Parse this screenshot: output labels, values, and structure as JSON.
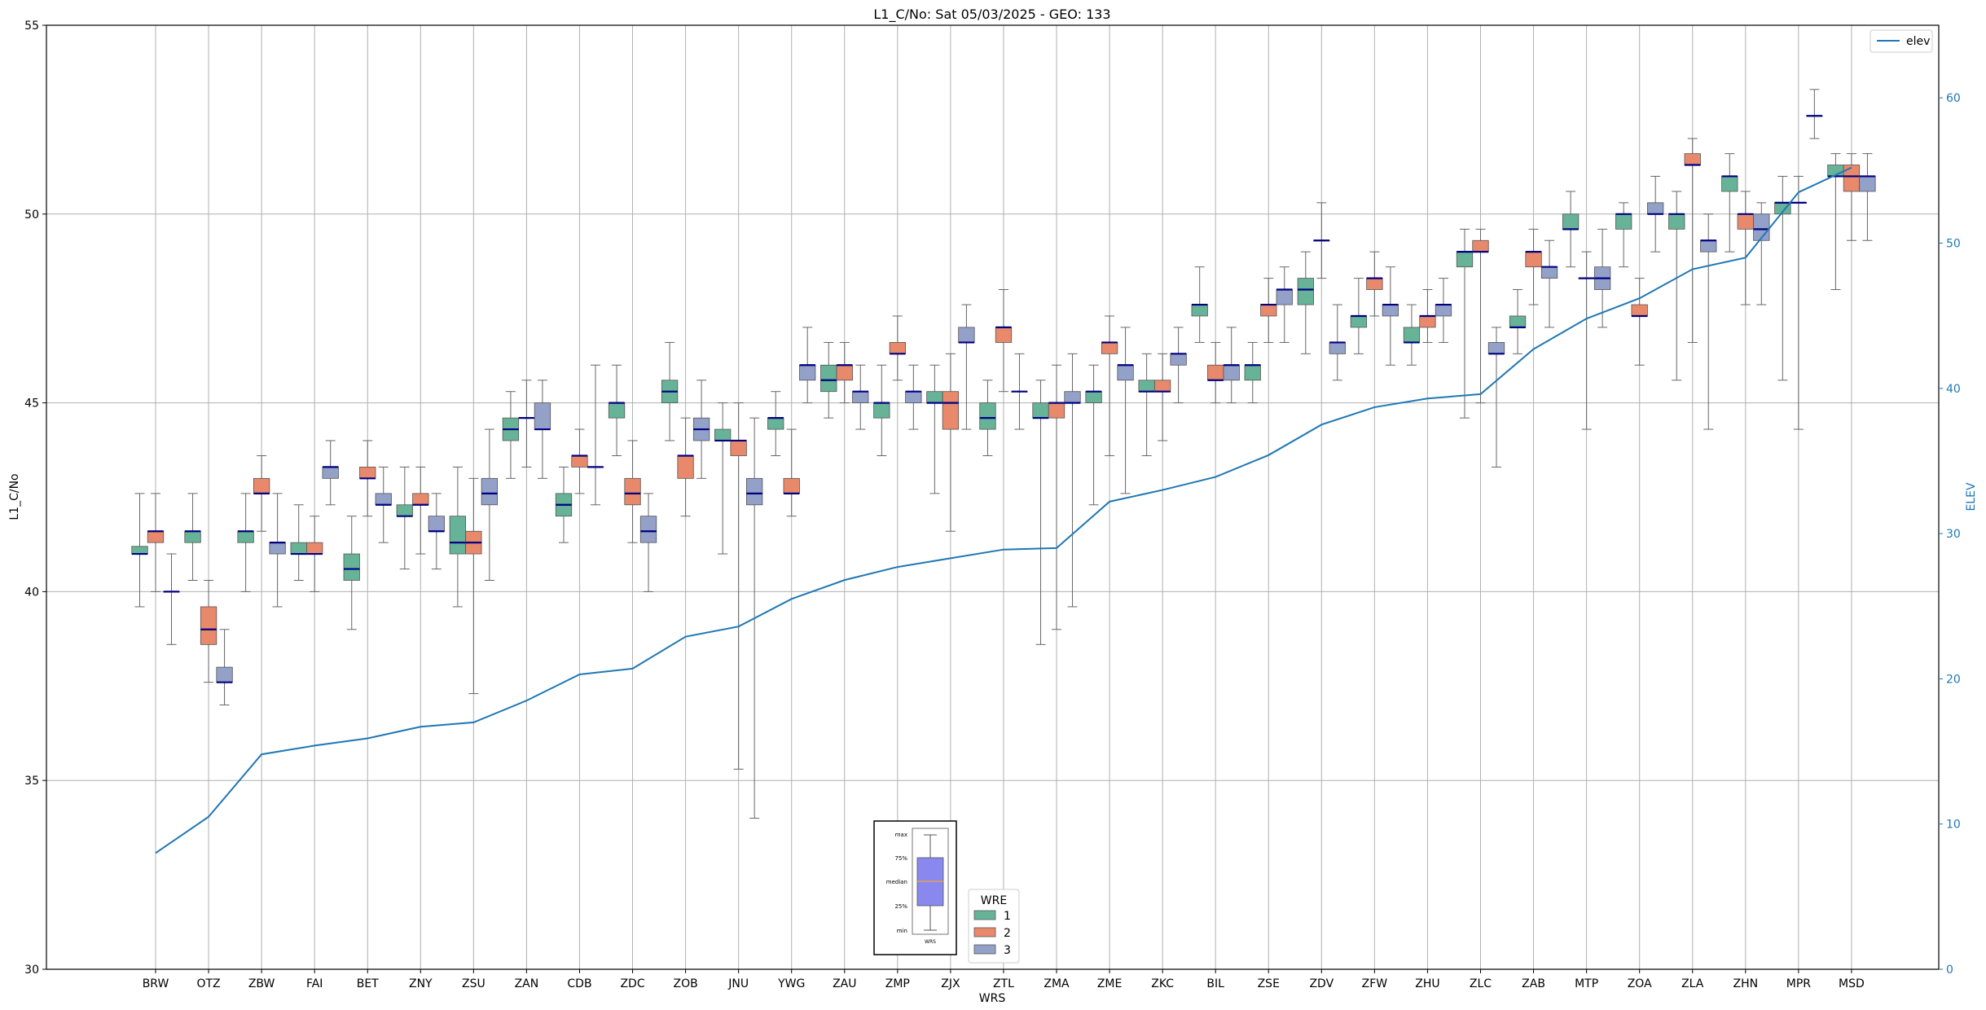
{
  "chart_data": {
    "type": "box",
    "title": "L1_C/No: Sat 05/03/2025 - GEO: 133",
    "xlabel": "WRS",
    "ylabel": "L1_C/No",
    "y2label": "ELEV",
    "ylim": [
      30,
      55
    ],
    "y2lim": [
      0,
      65
    ],
    "yticks": [
      30,
      35,
      40,
      45,
      50,
      55
    ],
    "y2ticks": [
      0,
      10,
      20,
      30,
      40,
      50,
      60
    ],
    "grid": true,
    "categories": [
      "BRW",
      "OTZ",
      "ZBW",
      "FAI",
      "BET",
      "ZNY",
      "ZSU",
      "ZAN",
      "CDB",
      "ZDC",
      "ZOB",
      "JNU",
      "YWG",
      "ZAU",
      "ZMP",
      "ZJX",
      "ZTL",
      "ZMA",
      "ZME",
      "ZKC",
      "BIL",
      "ZSE",
      "ZDV",
      "ZFW",
      "ZHU",
      "ZLC",
      "ZAB",
      "MTP",
      "ZOA",
      "ZLA",
      "ZHN",
      "MPR",
      "MSD"
    ],
    "legend_title": "WRE",
    "series": [
      {
        "name": "1",
        "color": "#66b398",
        "stats": [
          [
            39.6,
            41.0,
            41.0,
            41.2,
            42.6
          ],
          [
            40.3,
            41.3,
            41.6,
            41.6,
            42.6
          ],
          [
            40.0,
            41.3,
            41.6,
            41.6,
            42.6
          ],
          [
            40.3,
            41.0,
            41.0,
            41.3,
            42.3
          ],
          [
            39.0,
            40.3,
            40.6,
            41.0,
            42.0
          ],
          [
            40.6,
            42.0,
            42.0,
            42.3,
            43.3
          ],
          [
            39.6,
            41.0,
            41.3,
            42.0,
            43.3
          ],
          [
            43.0,
            44.0,
            44.3,
            44.6,
            45.3
          ],
          [
            41.3,
            42.0,
            42.3,
            42.6,
            43.3
          ],
          [
            43.6,
            44.6,
            45.0,
            45.0,
            46.0
          ],
          [
            44.0,
            45.0,
            45.3,
            45.6,
            46.6
          ],
          [
            41.0,
            44.0,
            44.0,
            44.3,
            45.0
          ],
          [
            43.6,
            44.3,
            44.6,
            44.6,
            45.3
          ],
          [
            44.6,
            45.3,
            45.6,
            46.0,
            46.6
          ],
          [
            43.6,
            44.6,
            45.0,
            45.0,
            46.0
          ],
          [
            42.6,
            45.0,
            45.0,
            45.3,
            46.0
          ],
          [
            43.6,
            44.3,
            44.6,
            45.0,
            45.6
          ],
          [
            38.6,
            44.6,
            44.6,
            45.0,
            45.6
          ],
          [
            42.3,
            45.0,
            45.3,
            45.3,
            46.0
          ],
          [
            43.6,
            45.3,
            45.3,
            45.6,
            46.3
          ],
          [
            46.6,
            47.3,
            47.6,
            47.6,
            48.6
          ],
          [
            45.0,
            45.6,
            46.0,
            46.0,
            46.6
          ],
          [
            46.3,
            47.6,
            48.0,
            48.3,
            49.0
          ],
          [
            46.3,
            47.0,
            47.3,
            47.3,
            48.3
          ],
          [
            46.0,
            46.6,
            46.6,
            47.0,
            47.6
          ],
          [
            44.6,
            48.6,
            49.0,
            49.0,
            49.6
          ],
          [
            46.3,
            47.0,
            47.0,
            47.3,
            48.0
          ],
          [
            48.6,
            49.6,
            49.6,
            50.0,
            50.6
          ],
          [
            48.6,
            49.6,
            50.0,
            50.0,
            50.3
          ],
          [
            45.6,
            49.6,
            50.0,
            50.0,
            50.6
          ],
          [
            49.0,
            50.6,
            51.0,
            51.0,
            51.6
          ],
          [
            45.6,
            50.0,
            50.3,
            50.3,
            51.0
          ],
          [
            48.0,
            51.0,
            51.0,
            51.3,
            51.6
          ]
        ]
      },
      {
        "name": "2",
        "color": "#e8896b",
        "stats": [
          [
            40.0,
            41.3,
            41.6,
            41.6,
            42.6
          ],
          [
            37.6,
            38.6,
            39.0,
            39.6,
            40.3
          ],
          [
            41.6,
            42.6,
            42.6,
            43.0,
            43.6
          ],
          [
            40.0,
            41.0,
            41.0,
            41.3,
            42.0
          ],
          [
            42.0,
            43.0,
            43.0,
            43.3,
            44.0
          ],
          [
            41.0,
            42.3,
            42.3,
            42.6,
            43.3
          ],
          [
            37.3,
            41.0,
            41.3,
            41.6,
            43.0
          ],
          [
            43.3,
            44.6,
            44.6,
            44.6,
            45.6
          ],
          [
            42.6,
            43.3,
            43.6,
            43.6,
            44.3
          ],
          [
            41.3,
            42.3,
            42.6,
            43.0,
            44.0
          ],
          [
            42.0,
            43.0,
            43.6,
            43.6,
            44.6
          ],
          [
            35.3,
            43.6,
            44.0,
            44.0,
            45.0
          ],
          [
            42.0,
            42.6,
            42.6,
            43.0,
            44.3
          ],
          [
            45.0,
            45.6,
            46.0,
            46.0,
            46.6
          ],
          [
            45.6,
            46.3,
            46.3,
            46.6,
            47.3
          ],
          [
            41.6,
            44.3,
            45.0,
            45.3,
            46.3
          ],
          [
            45.3,
            46.6,
            47.0,
            47.0,
            48.0
          ],
          [
            39.0,
            44.6,
            45.0,
            45.0,
            46.0
          ],
          [
            43.6,
            46.3,
            46.6,
            46.6,
            47.3
          ],
          [
            44.0,
            45.3,
            45.3,
            45.6,
            46.3
          ],
          [
            45.0,
            45.6,
            45.6,
            46.0,
            46.6
          ],
          [
            46.6,
            47.3,
            47.6,
            47.6,
            48.3
          ],
          [
            48.3,
            49.3,
            49.3,
            49.3,
            50.3
          ],
          [
            47.3,
            48.0,
            48.3,
            48.3,
            49.0
          ],
          [
            46.6,
            47.0,
            47.3,
            47.3,
            48.0
          ],
          [
            45.0,
            49.0,
            49.0,
            49.3,
            49.6
          ],
          [
            47.6,
            48.6,
            49.0,
            49.0,
            49.6
          ],
          [
            44.3,
            48.3,
            48.3,
            48.3,
            49.0
          ],
          [
            46.0,
            47.3,
            47.3,
            47.6,
            48.3
          ],
          [
            46.6,
            51.3,
            51.3,
            51.6,
            52.0
          ],
          [
            47.6,
            49.6,
            50.0,
            50.0,
            50.6
          ],
          [
            44.3,
            50.3,
            50.3,
            50.3,
            51.0
          ],
          [
            49.3,
            50.6,
            51.0,
            51.3,
            51.6
          ]
        ]
      },
      {
        "name": "3",
        "color": "#93a0c8",
        "stats": [
          [
            38.6,
            40.0,
            40.0,
            40.0,
            41.0
          ],
          [
            37.0,
            37.6,
            37.6,
            38.0,
            39.0
          ],
          [
            39.6,
            41.0,
            41.3,
            41.3,
            42.6
          ],
          [
            42.3,
            43.0,
            43.3,
            43.3,
            44.0
          ],
          [
            41.3,
            42.3,
            42.3,
            42.6,
            43.3
          ],
          [
            40.6,
            41.6,
            41.6,
            42.0,
            42.6
          ],
          [
            40.3,
            42.3,
            42.6,
            43.0,
            44.3
          ],
          [
            43.0,
            44.3,
            44.3,
            45.0,
            45.6
          ],
          [
            42.3,
            43.3,
            43.3,
            43.3,
            46.0
          ],
          [
            40.0,
            41.3,
            41.6,
            42.0,
            42.6
          ],
          [
            43.0,
            44.0,
            44.3,
            44.6,
            45.6
          ],
          [
            34.0,
            42.3,
            42.6,
            43.0,
            44.6
          ],
          [
            45.0,
            45.6,
            46.0,
            46.0,
            47.0
          ],
          [
            44.3,
            45.0,
            45.3,
            45.3,
            46.0
          ],
          [
            44.3,
            45.0,
            45.3,
            45.3,
            46.0
          ],
          [
            44.3,
            46.6,
            46.6,
            47.0,
            47.6
          ],
          [
            44.3,
            45.3,
            45.3,
            45.3,
            46.3
          ],
          [
            39.6,
            45.0,
            45.0,
            45.3,
            46.3
          ],
          [
            42.6,
            45.6,
            46.0,
            46.0,
            47.0
          ],
          [
            45.0,
            46.0,
            46.3,
            46.3,
            47.0
          ],
          [
            45.0,
            45.6,
            46.0,
            46.0,
            47.0
          ],
          [
            46.6,
            47.6,
            48.0,
            48.0,
            48.6
          ],
          [
            45.6,
            46.3,
            46.6,
            46.6,
            47.6
          ],
          [
            46.0,
            47.3,
            47.6,
            47.6,
            48.6
          ],
          [
            46.6,
            47.3,
            47.6,
            47.6,
            48.3
          ],
          [
            43.3,
            46.3,
            46.3,
            46.6,
            47.0
          ],
          [
            47.0,
            48.3,
            48.6,
            48.6,
            49.3
          ],
          [
            47.0,
            48.0,
            48.3,
            48.6,
            49.6
          ],
          [
            49.0,
            50.0,
            50.0,
            50.3,
            51.0
          ],
          [
            44.3,
            49.0,
            49.3,
            49.3,
            50.0
          ],
          [
            47.6,
            49.3,
            49.6,
            50.0,
            50.3
          ],
          [
            52.0,
            52.6,
            52.6,
            52.6,
            53.3
          ],
          [
            49.3,
            50.6,
            51.0,
            51.0,
            51.6
          ]
        ]
      }
    ],
    "elev": {
      "name": "elev",
      "color": "#1f77b4",
      "values": [
        8,
        10.5,
        14.8,
        15.4,
        15.9,
        16.7,
        17.0,
        18.5,
        20.3,
        20.7,
        22.9,
        23.6,
        25.5,
        26.8,
        27.7,
        28.3,
        28.9,
        29.0,
        32.2,
        33.0,
        33.9,
        35.4,
        37.5,
        38.7,
        39.3,
        39.6,
        42.7,
        44.8,
        46.2,
        48.2,
        49.0,
        53.5,
        55.2
      ]
    },
    "legend": [
      "elev"
    ]
  },
  "inset": {
    "labels": [
      "max",
      "75%",
      "median",
      "25%",
      "min"
    ],
    "xlabel": "WRS"
  }
}
